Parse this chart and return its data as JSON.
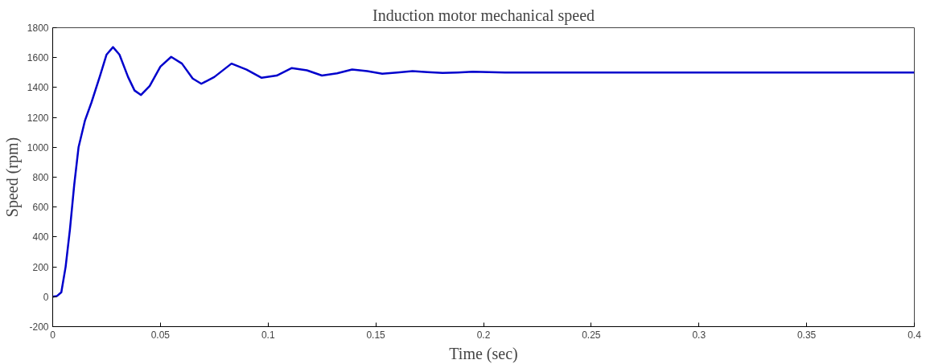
{
  "chart_data": {
    "type": "line",
    "title": "Induction motor mechanical speed",
    "xlabel": "Time (sec)",
    "ylabel": "Speed (rpm)",
    "x": [
      0,
      0.002,
      0.004,
      0.006,
      0.008,
      0.01,
      0.012,
      0.015,
      0.018,
      0.022,
      0.025,
      0.028,
      0.031,
      0.035,
      0.038,
      0.041,
      0.045,
      0.05,
      0.055,
      0.06,
      0.065,
      0.069,
      0.075,
      0.083,
      0.09,
      0.097,
      0.104,
      0.111,
      0.118,
      0.125,
      0.132,
      0.139,
      0.146,
      0.153,
      0.16,
      0.167,
      0.174,
      0.181,
      0.188,
      0.195,
      0.21,
      0.25,
      0.3,
      0.35,
      0.4
    ],
    "series": [
      {
        "color": "#0000cc",
        "values": [
          0,
          5,
          30,
          200,
          450,
          750,
          1000,
          1180,
          1300,
          1480,
          1620,
          1670,
          1620,
          1470,
          1380,
          1350,
          1410,
          1540,
          1605,
          1560,
          1460,
          1425,
          1470,
          1560,
          1520,
          1465,
          1480,
          1530,
          1515,
          1480,
          1495,
          1520,
          1510,
          1492,
          1500,
          1510,
          1503,
          1497,
          1500,
          1505,
          1500,
          1500,
          1500,
          1500,
          1500
        ]
      }
    ],
    "xlim": [
      0,
      0.4
    ],
    "ylim": [
      -200,
      1800
    ],
    "xticks": [
      0,
      0.05,
      0.1,
      0.15,
      0.2,
      0.25,
      0.3,
      0.35,
      0.4
    ],
    "yticks": [
      -200,
      0,
      200,
      400,
      600,
      800,
      1000,
      1200,
      1400,
      1600,
      1800
    ],
    "grid": false,
    "marker": "none",
    "line_style": "solid"
  }
}
